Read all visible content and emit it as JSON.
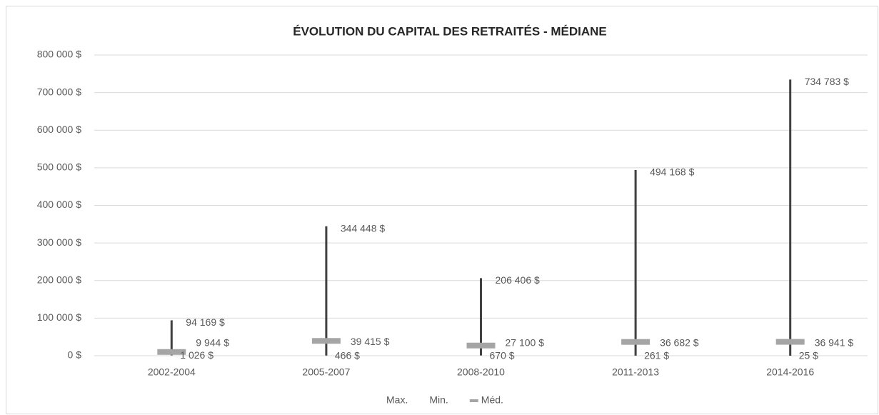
{
  "chart_data": {
    "type": "stock",
    "title": "ÉVOLUTION DU CAPITAL DES RETRAITÉS - MÉDIANE",
    "categories": [
      "2002-2004",
      "2005-2007",
      "2008-2010",
      "2011-2013",
      "2014-2016"
    ],
    "series": [
      {
        "name": "Max.",
        "color": "#404040",
        "values": [
          94169,
          344448,
          206406,
          494168,
          734783
        ],
        "value_labels": [
          "94 169 $",
          "344 448 $",
          "206 406 $",
          "494 168 $",
          "734 783 $"
        ]
      },
      {
        "name": "Min.",
        "color": "#404040",
        "values": [
          1026,
          466,
          670,
          261,
          25
        ],
        "value_labels": [
          "1 026 $",
          "466 $",
          "670 $",
          "261 $",
          "25 $"
        ]
      },
      {
        "name": "Méd.",
        "color": "#a5a5a5",
        "values": [
          9944,
          39415,
          27100,
          36682,
          36941
        ],
        "value_labels": [
          "9 944 $",
          "39 415 $",
          "27 100 $",
          "36 682 $",
          "36 941 $"
        ]
      }
    ],
    "ylim": [
      0,
      800000
    ],
    "yticks": [
      {
        "value": 0,
        "label": "0 $"
      },
      {
        "value": 100000,
        "label": "100 000 $"
      },
      {
        "value": 200000,
        "label": "200 000 $"
      },
      {
        "value": 300000,
        "label": "300 000 $"
      },
      {
        "value": 400000,
        "label": "400 000 $"
      },
      {
        "value": 500000,
        "label": "500 000 $"
      },
      {
        "value": 600000,
        "label": "600 000 $"
      },
      {
        "value": 700000,
        "label": "700 000 $"
      },
      {
        "value": 800000,
        "label": "800 000 $"
      }
    ],
    "grid": true
  }
}
